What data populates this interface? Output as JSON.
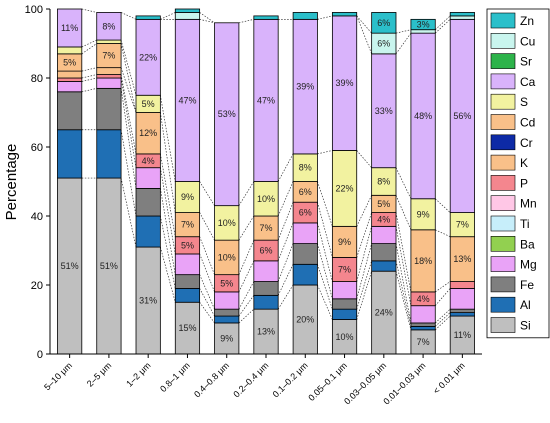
{
  "chart_data": {
    "type": "bar",
    "stacked": true,
    "title": "",
    "xlabel": "",
    "ylabel": "Percentage",
    "ylim": [
      0,
      100
    ],
    "yticks": [
      0,
      20,
      40,
      60,
      80,
      100
    ],
    "grid": false,
    "connector_lines": "dotted",
    "legend_position": "right",
    "categories": [
      "5–10 μm",
      "2–5 μm",
      "1–2 μm",
      "0.8–1 μm",
      "0.4–0.8 μm",
      "0.2–0.4 μm",
      "0.1–0.2 μm",
      "0.05–0.1 μm",
      "0.03–0.05 μm",
      "0.01–0.03 μm",
      "< 0.01 μm"
    ],
    "series": [
      {
        "name": "Si",
        "color": "#bfbfbf",
        "values": [
          51,
          51,
          31,
          15,
          9,
          13,
          20,
          10,
          24,
          7,
          11
        ]
      },
      {
        "name": "Al",
        "color": "#1f6fb4",
        "values": [
          14,
          14,
          9,
          4,
          2,
          4,
          6,
          3,
          3,
          1,
          1
        ]
      },
      {
        "name": "Fe",
        "color": "#7f7f7f",
        "values": [
          11,
          12,
          8,
          4,
          2,
          4,
          6,
          3,
          5,
          1,
          1
        ]
      },
      {
        "name": "Mg",
        "color": "#e9a3f7",
        "values": [
          3,
          3,
          6,
          6,
          5,
          6,
          6,
          5,
          5,
          5,
          6
        ]
      },
      {
        "name": "Ba",
        "color": "#92d050",
        "values": [
          0,
          0,
          0,
          0,
          0,
          0,
          0,
          0,
          0,
          0,
          0
        ]
      },
      {
        "name": "Ti",
        "color": "#c7eefa",
        "values": [
          0,
          0,
          0,
          0,
          0,
          0,
          0,
          0,
          0,
          0,
          0
        ]
      },
      {
        "name": "Mn",
        "color": "#ffc7e6",
        "values": [
          0,
          0,
          0,
          0,
          0,
          0,
          0,
          0,
          0,
          0,
          0
        ]
      },
      {
        "name": "P",
        "color": "#f4868e",
        "values": [
          1,
          1,
          4,
          5,
          5,
          6,
          6,
          7,
          4,
          4,
          2
        ]
      },
      {
        "name": "K",
        "color": "#f9c089",
        "values": [
          2,
          2,
          12,
          7,
          10,
          7,
          6,
          9,
          5,
          18,
          13
        ]
      },
      {
        "name": "Cr",
        "color": "#0d2aa6",
        "values": [
          0,
          0,
          0,
          0,
          0,
          0,
          0,
          0,
          0,
          0,
          0
        ]
      },
      {
        "name": "Cd",
        "color": "#f9c089",
        "values": [
          5,
          7,
          0,
          0,
          0,
          0,
          0,
          0,
          0,
          0,
          0
        ]
      },
      {
        "name": "S",
        "color": "#f2f2a0",
        "values": [
          2,
          1,
          5,
          9,
          10,
          10,
          8,
          22,
          8,
          9,
          7
        ]
      },
      {
        "name": "Ca",
        "color": "#d9b3fb",
        "values": [
          11,
          8,
          22,
          47,
          53,
          47,
          39,
          39,
          33,
          48,
          56
        ]
      },
      {
        "name": "Sr",
        "color": "#2db34a",
        "values": [
          0,
          0,
          0,
          0,
          0,
          0,
          0,
          0,
          0,
          0,
          0
        ]
      },
      {
        "name": "Cu",
        "color": "#c9f5ee",
        "values": [
          0,
          0,
          0,
          2,
          0,
          0,
          0,
          0,
          6,
          1,
          1
        ]
      },
      {
        "name": "Zn",
        "color": "#2bbfca",
        "values": [
          0,
          0,
          1,
          1,
          0,
          1,
          2,
          1,
          6,
          3,
          1
        ]
      }
    ],
    "data_labels": [
      {
        "series": "Si",
        "labels": [
          "51%",
          "51%",
          "31%",
          "15%",
          "9%",
          "13%",
          "20%",
          "10%",
          "24%",
          "7%",
          "11%"
        ]
      },
      {
        "series": "P",
        "labels": [
          "",
          "",
          "4%",
          "5%",
          "5%",
          "6%",
          "6%",
          "7%",
          "4%",
          "4%",
          ""
        ]
      },
      {
        "series": "K",
        "labels": [
          "",
          "",
          "12%",
          "7%",
          "10%",
          "7%",
          "6%",
          "9%",
          "5%",
          "18%",
          "13%"
        ]
      },
      {
        "series": "Cd",
        "labels": [
          "5%",
          "7%",
          "",
          "",
          "",
          "",
          "",
          "",
          "",
          "",
          ""
        ]
      },
      {
        "series": "S",
        "labels": [
          "",
          "",
          "5%",
          "9%",
          "10%",
          "10%",
          "8%",
          "22%",
          "8%",
          "9%",
          "7%"
        ]
      },
      {
        "series": "Ca",
        "labels": [
          "11%",
          "8%",
          "22%",
          "47%",
          "53%",
          "47%",
          "39%",
          "39%",
          "33%",
          "48%",
          "56%"
        ]
      },
      {
        "series": "Cu",
        "labels": [
          "",
          "",
          "",
          "",
          "",
          "",
          "",
          "",
          "6%",
          "",
          ""
        ]
      },
      {
        "series": "Zn",
        "labels": [
          "",
          "",
          "",
          "",
          "",
          "",
          "",
          "",
          "6%",
          "3%",
          ""
        ]
      }
    ],
    "legend_order": [
      "Zn",
      "Cu",
      "Sr",
      "Ca",
      "S",
      "Cd",
      "Cr",
      "K",
      "P",
      "Mn",
      "Ti",
      "Ba",
      "Mg",
      "Fe",
      "Al",
      "Si"
    ]
  }
}
